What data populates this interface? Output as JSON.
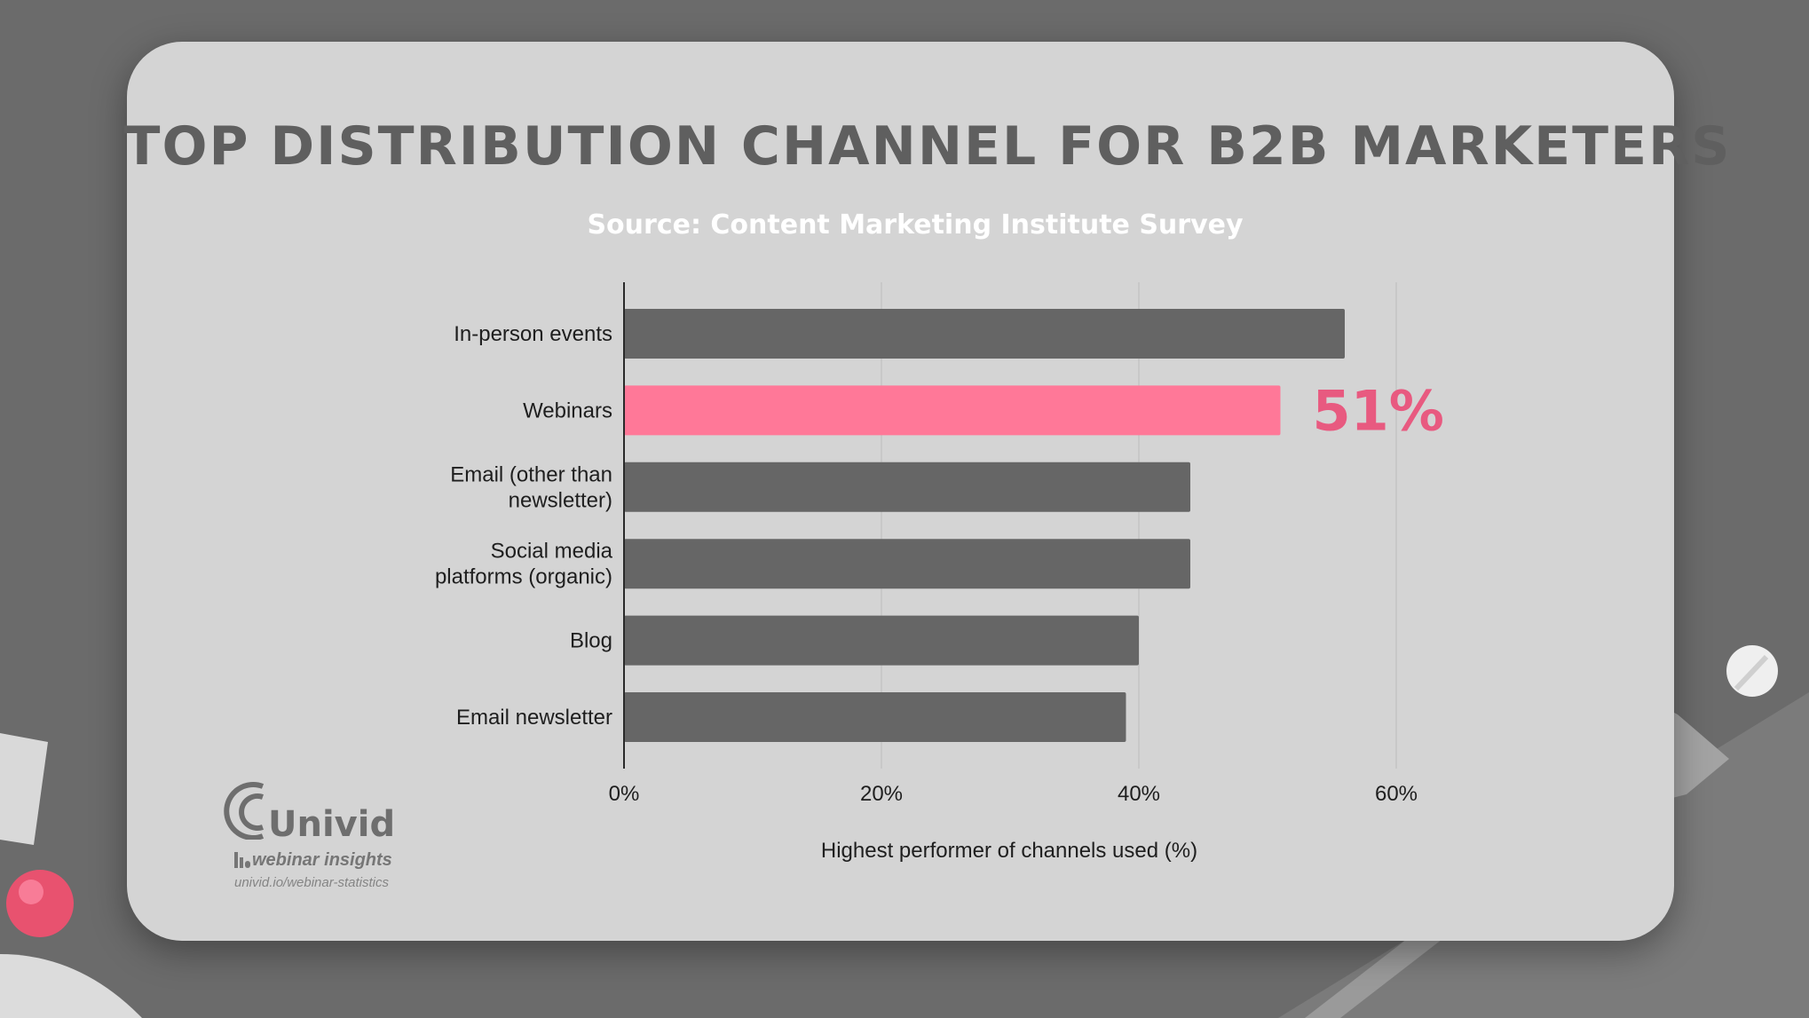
{
  "title": "TOP DISTRIBUTION CHANNEL FOR B2B MARKETERS",
  "subtitle": "Source: Content Marketing Institute Survey",
  "chart_data": {
    "type": "bar",
    "orientation": "horizontal",
    "categories": [
      [
        "In-person events"
      ],
      [
        "Webinars"
      ],
      [
        "Email (other than",
        "newsletter)"
      ],
      [
        "Social media",
        "platforms (organic)"
      ],
      [
        "Blog"
      ],
      [
        "Email newsletter"
      ]
    ],
    "values": [
      56,
      51,
      44,
      44,
      40,
      39
    ],
    "highlight_index": 1,
    "callout": "51%",
    "xlabel": "Highest performer of channels used (%)",
    "ylabel": "",
    "xlim": [
      0,
      75
    ],
    "xticks": [
      0,
      20,
      40,
      60
    ],
    "xtick_labels": [
      "0%",
      "20%",
      "40%",
      "60%"
    ],
    "grid": true,
    "legend": "none",
    "colors": {
      "bar": "#666666",
      "highlight": "#ff7898",
      "callout": "#e85a80",
      "grid": "#c4c4c4"
    }
  },
  "logo": {
    "wordmark": "Univid",
    "tagline": "webinar insights",
    "url": "univid.io/webinar-statistics"
  }
}
